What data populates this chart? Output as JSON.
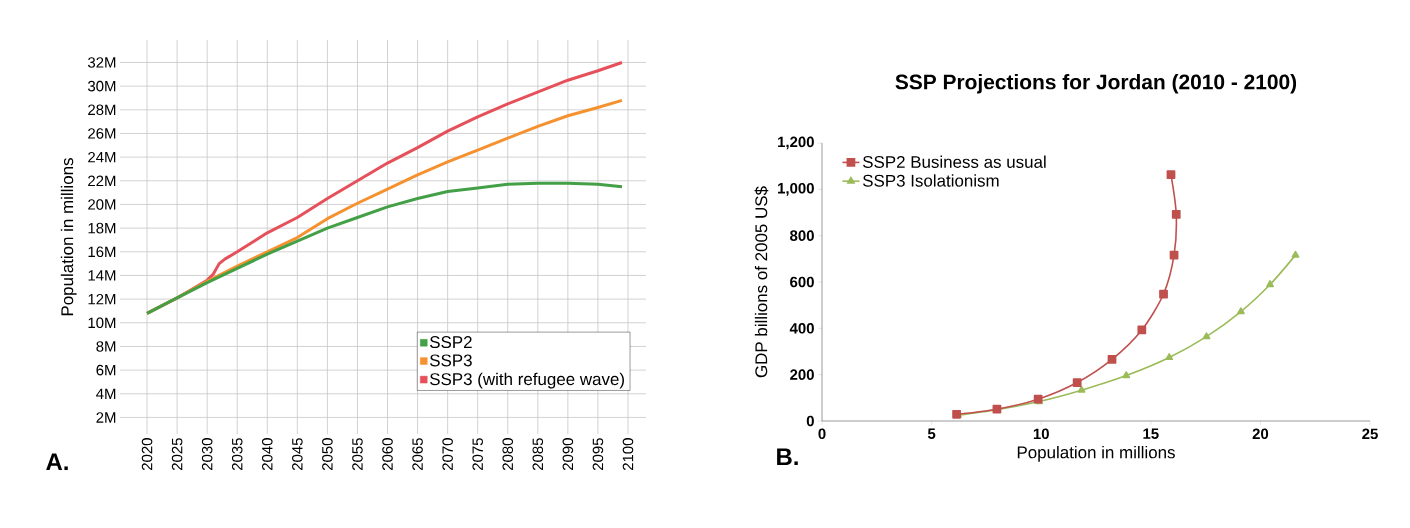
{
  "chart_data": [
    {
      "type": "line",
      "ylabel": "Population in millions",
      "annotations": [
        "A."
      ],
      "grid": true,
      "legend": "bottom right",
      "x": [
        2020,
        2025,
        2030,
        2035,
        2040,
        2045,
        2050,
        2055,
        2060,
        2065,
        2070,
        2075,
        2080,
        2085,
        2090,
        2095,
        2099
      ],
      "xlim": [
        2015.5,
        2103
      ],
      "xticks": [
        2020,
        2025,
        2030,
        2035,
        2040,
        2045,
        2050,
        2055,
        2060,
        2065,
        2070,
        2075,
        2080,
        2085,
        2090,
        2095,
        2100
      ],
      "ylim": [
        0.6,
        33.9
      ],
      "yticks": [
        {
          "value": 2,
          "label": "2M"
        },
        {
          "value": 4,
          "label": "4M"
        },
        {
          "value": 6,
          "label": "6M"
        },
        {
          "value": 8,
          "label": "8M"
        },
        {
          "value": 10,
          "label": "10M"
        },
        {
          "value": 12,
          "label": "12M"
        },
        {
          "value": 14,
          "label": "14M"
        },
        {
          "value": 16,
          "label": "16M"
        },
        {
          "value": 18,
          "label": "18M"
        },
        {
          "value": 20,
          "label": "20M"
        },
        {
          "value": 22,
          "label": "22M"
        },
        {
          "value": 24,
          "label": "24M"
        },
        {
          "value": 26,
          "label": "26M"
        },
        {
          "value": 28,
          "label": "28M"
        },
        {
          "value": 30,
          "label": "30M"
        },
        {
          "value": 32,
          "label": "32M"
        }
      ],
      "series": [
        {
          "name": "SSP2",
          "color": "#43a047",
          "values": [
            10.8,
            12.1,
            13.4,
            14.6,
            15.8,
            16.9,
            18.0,
            18.9,
            19.8,
            20.5,
            21.1,
            21.4,
            21.7,
            21.8,
            21.8,
            21.7,
            21.5
          ]
        },
        {
          "name": "SSP3",
          "color": "#f5922f",
          "values": [
            10.8,
            12.1,
            13.5,
            14.8,
            16.0,
            17.2,
            18.8,
            20.1,
            21.3,
            22.5,
            23.6,
            24.6,
            25.6,
            26.6,
            27.5,
            28.2,
            28.8
          ]
        },
        {
          "name": "SSP3 (with refugee wave)",
          "color": "#e5505a",
          "x": [
            2020,
            2025,
            2030,
            2031,
            2032,
            2033,
            2035,
            2040,
            2045,
            2050,
            2055,
            2060,
            2065,
            2070,
            2075,
            2080,
            2085,
            2090,
            2095,
            2099
          ],
          "values": [
            10.8,
            12.1,
            13.6,
            14.1,
            15.0,
            15.4,
            16.0,
            17.6,
            18.9,
            20.5,
            22.0,
            23.5,
            24.8,
            26.2,
            27.4,
            28.5,
            29.5,
            30.5,
            31.3,
            32.0
          ]
        }
      ]
    },
    {
      "type": "line",
      "title": "SSP Projections for Jordan (2010 - 2100)",
      "xlabel": "Population in millions",
      "ylabel": "GDP billions of 2005 US$",
      "annotations": [
        "B."
      ],
      "legend": "top left",
      "xlim": [
        0,
        25
      ],
      "xticks": [
        0,
        5,
        10,
        15,
        20,
        25
      ],
      "ylim": [
        0,
        1200
      ],
      "yticks": [
        0,
        200,
        400,
        600,
        800,
        {
          "value": 1000,
          "label": "1,000"
        },
        {
          "value": 1200,
          "label": "1,200"
        }
      ],
      "series": [
        {
          "name": "SSP2 Business as usual",
          "color": "#c0504d",
          "marker": "square",
          "x": [
            6.14,
            7.98,
            9.86,
            11.64,
            13.23,
            14.59,
            15.58,
            16.06,
            16.16,
            15.92
          ],
          "values": [
            29,
            51,
            94,
            166,
            266,
            393,
            548,
            716,
            892,
            1063
          ]
        },
        {
          "name": "SSP3 Isolationism",
          "color": "#9bbb59",
          "marker": "triangle",
          "x": [
            6.2,
            7.98,
            9.9,
            11.84,
            13.88,
            15.84,
            17.54,
            19.11,
            20.44,
            21.6
          ],
          "values": [
            25,
            49,
            84,
            133,
            196,
            274,
            364,
            472,
            589,
            716
          ]
        }
      ]
    }
  ]
}
